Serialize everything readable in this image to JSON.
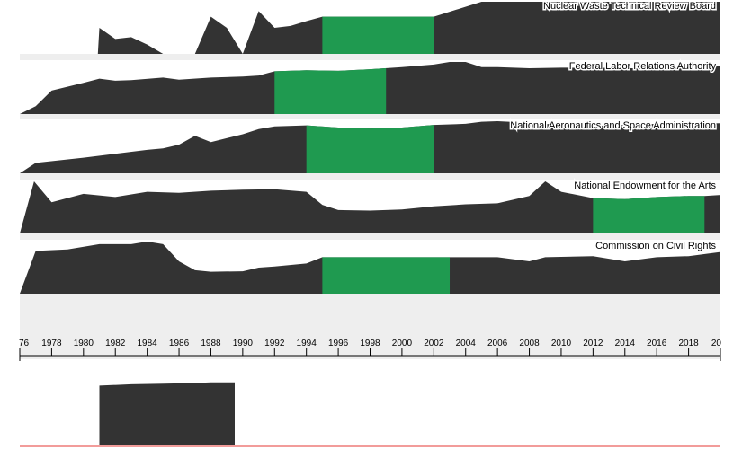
{
  "colors": {
    "area": "#333333",
    "highlight": "#1f9a50",
    "panel_bg": "#eeeeee",
    "axis": "#000000",
    "bottom_line": "#e53935"
  },
  "chart_data": {
    "type": "area",
    "x_range": [
      1976,
      2020
    ],
    "x_ticks": [
      "76",
      "1978",
      "1980",
      "1982",
      "1984",
      "1986",
      "1988",
      "1990",
      "1992",
      "1994",
      "1996",
      "1998",
      "2000",
      "2002",
      "2004",
      "2006",
      "2008",
      "2010",
      "2012",
      "2014",
      "2016",
      "2018",
      "20"
    ],
    "panels": [
      {
        "name": "Nuclear Waste Technical Review Board",
        "highlight": [
          1995,
          2002
        ],
        "x": [
          1976,
          1980,
          1980.9,
          1981,
          1982,
          1983,
          1984,
          1985,
          1987,
          1988,
          1989,
          1990,
          1991,
          1992,
          1993,
          1994,
          1995,
          2002,
          2005,
          2020
        ],
        "y": [
          0,
          0,
          0,
          0.7,
          0.4,
          0.45,
          0.25,
          0,
          0,
          1.0,
          0.7,
          0,
          1.15,
          0.7,
          0.75,
          0.88,
          1.0,
          1.0,
          1.4,
          1.4
        ],
        "ymax": 1.4
      },
      {
        "name": "Federal Labor Relations Authority",
        "highlight": [
          1992,
          1999
        ],
        "x": [
          1976,
          1977,
          1978,
          1980,
          1981,
          1982,
          1983,
          1985,
          1986,
          1988,
          1990,
          1991,
          1992,
          1994,
          1996,
          1998,
          2000,
          2002,
          2003,
          2004,
          2005,
          2006,
          2008,
          2010,
          2012,
          2014,
          2016,
          2018,
          2020
        ],
        "y": [
          0,
          0.15,
          0.45,
          0.6,
          0.68,
          0.64,
          0.65,
          0.7,
          0.66,
          0.7,
          0.72,
          0.74,
          0.82,
          0.84,
          0.83,
          0.86,
          0.9,
          0.95,
          1.0,
          1.0,
          0.9,
          0.9,
          0.88,
          0.89,
          0.89,
          0.88,
          0.88,
          0.89,
          0.92
        ],
        "ymax": 1.0
      },
      {
        "name": "National Aeronautics and Space Administration",
        "highlight": [
          1994,
          2002
        ],
        "x": [
          1976,
          1977,
          1980,
          1984,
          1985,
          1986,
          1987,
          1988,
          1990,
          1991,
          1992,
          1994,
          1996,
          1998,
          2000,
          2002,
          2004,
          2005,
          2006,
          2008,
          2010,
          2012,
          2014,
          2016,
          2018,
          2020
        ],
        "y": [
          0,
          0.2,
          0.3,
          0.45,
          0.48,
          0.55,
          0.72,
          0.6,
          0.75,
          0.85,
          0.9,
          0.92,
          0.88,
          0.86,
          0.88,
          0.93,
          0.95,
          0.99,
          1.0,
          0.97,
          0.93,
          0.91,
          0.93,
          0.95,
          0.95,
          0.96
        ],
        "ymax": 1.0
      },
      {
        "name": "National Endowment for the Arts",
        "highlight": [
          2012,
          2019
        ],
        "x": [
          1976,
          1976.9,
          1978,
          1980,
          1982,
          1984,
          1986,
          1988,
          1990,
          1992,
          1994,
          1995,
          1996,
          1998,
          2000,
          2002,
          2004,
          2006,
          2008,
          2009,
          2010,
          2012,
          2014,
          2016,
          2018,
          2019,
          2020
        ],
        "y": [
          0,
          1.0,
          0.6,
          0.76,
          0.7,
          0.8,
          0.78,
          0.82,
          0.84,
          0.85,
          0.8,
          0.55,
          0.45,
          0.44,
          0.46,
          0.52,
          0.56,
          0.58,
          0.72,
          1.0,
          0.8,
          0.68,
          0.66,
          0.7,
          0.72,
          0.72,
          0.74
        ],
        "ymax": 1.0
      },
      {
        "name": "Commission on Civil Rights",
        "highlight": [
          1995,
          2003
        ],
        "x": [
          1976,
          1977,
          1979,
          1981,
          1983,
          1984,
          1985,
          1986,
          1987,
          1988,
          1990,
          1991,
          1992,
          1994,
          1995,
          2003,
          2006,
          2008,
          2009,
          2012,
          2014,
          2016,
          2018,
          2020
        ],
        "y": [
          0,
          0.82,
          0.85,
          0.95,
          0.95,
          1.0,
          0.95,
          0.62,
          0.45,
          0.42,
          0.43,
          0.5,
          0.52,
          0.58,
          0.7,
          0.7,
          0.7,
          0.62,
          0.7,
          0.72,
          0.62,
          0.7,
          0.72,
          0.8
        ],
        "ymax": 1.0
      }
    ],
    "detail": {
      "x": [
        1981,
        1983,
        1985,
        1987,
        1988,
        1989.5
      ],
      "y": [
        0.93,
        0.95,
        0.96,
        0.97,
        0.98,
        0.98
      ],
      "ymax": 1.2
    }
  }
}
